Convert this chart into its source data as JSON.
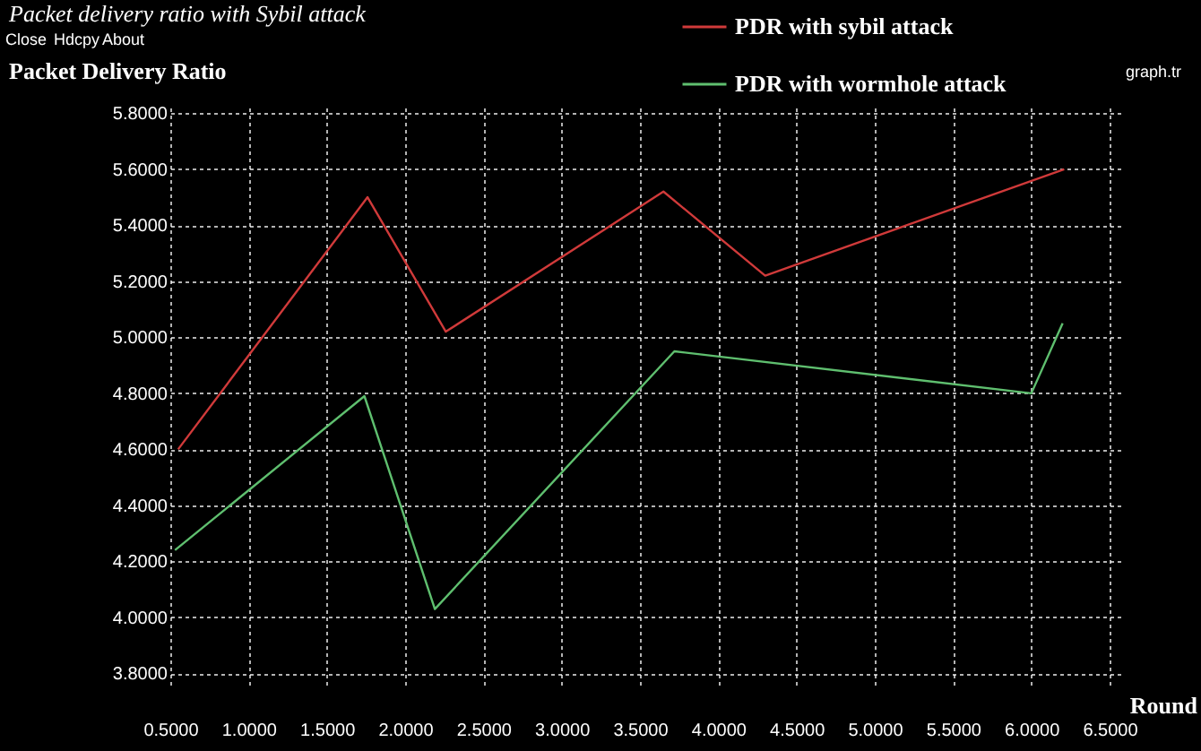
{
  "chart_data": {
    "type": "line",
    "title": "Packet delivery ratio with Sybil attack",
    "xlabel": "Round",
    "ylabel": "Packet Delivery Ratio",
    "series": [
      {
        "name": "PDR with sybil attack",
        "color": "#d03a3a",
        "x": [
          0.55,
          1.76,
          2.26,
          3.65,
          4.3,
          6.21
        ],
        "values": [
          4.6,
          5.5,
          5.02,
          5.52,
          5.22,
          5.6
        ]
      },
      {
        "name": "PDR with wormhole attack",
        "color": "#5fbf6f",
        "x": [
          0.53,
          1.74,
          2.19,
          3.72,
          6.0,
          6.2
        ],
        "values": [
          4.24,
          4.79,
          4.03,
          4.95,
          4.8,
          5.05
        ]
      }
    ],
    "xlim": [
      0.5,
      6.58
    ],
    "ylim": [
      3.76,
      5.82
    ],
    "xticks": [
      {
        "value": 0.5,
        "label": "0.5000"
      },
      {
        "value": 1.0,
        "label": "1.0000"
      },
      {
        "value": 1.5,
        "label": "1.5000"
      },
      {
        "value": 2.0,
        "label": "2.0000"
      },
      {
        "value": 2.5,
        "label": "2.5000"
      },
      {
        "value": 3.0,
        "label": "3.0000"
      },
      {
        "value": 3.5,
        "label": "3.5000"
      },
      {
        "value": 4.0,
        "label": "4.0000"
      },
      {
        "value": 4.5,
        "label": "4.5000"
      },
      {
        "value": 5.0,
        "label": "5.0000"
      },
      {
        "value": 5.5,
        "label": "5.5000"
      },
      {
        "value": 6.0,
        "label": "6.0000"
      },
      {
        "value": 6.5,
        "label": "6.5000"
      }
    ],
    "yticks": [
      {
        "value": 3.8,
        "label": "3.8000"
      },
      {
        "value": 4.0,
        "label": "4.0000"
      },
      {
        "value": 4.2,
        "label": "4.2000"
      },
      {
        "value": 4.4,
        "label": "4.4000"
      },
      {
        "value": 4.6,
        "label": "4.6000"
      },
      {
        "value": 4.8,
        "label": "4.8000"
      },
      {
        "value": 5.0,
        "label": "5.0000"
      },
      {
        "value": 5.2,
        "label": "5.2000"
      },
      {
        "value": 5.4,
        "label": "5.4000"
      },
      {
        "value": 5.6,
        "label": "5.6000"
      },
      {
        "value": 5.8,
        "label": "5.8000"
      }
    ],
    "grid": true,
    "legend": "top",
    "marker": "none",
    "line_style": "solid",
    "annotations": [
      "Close",
      "Hdcpy",
      "About",
      "graph.tr"
    ]
  }
}
